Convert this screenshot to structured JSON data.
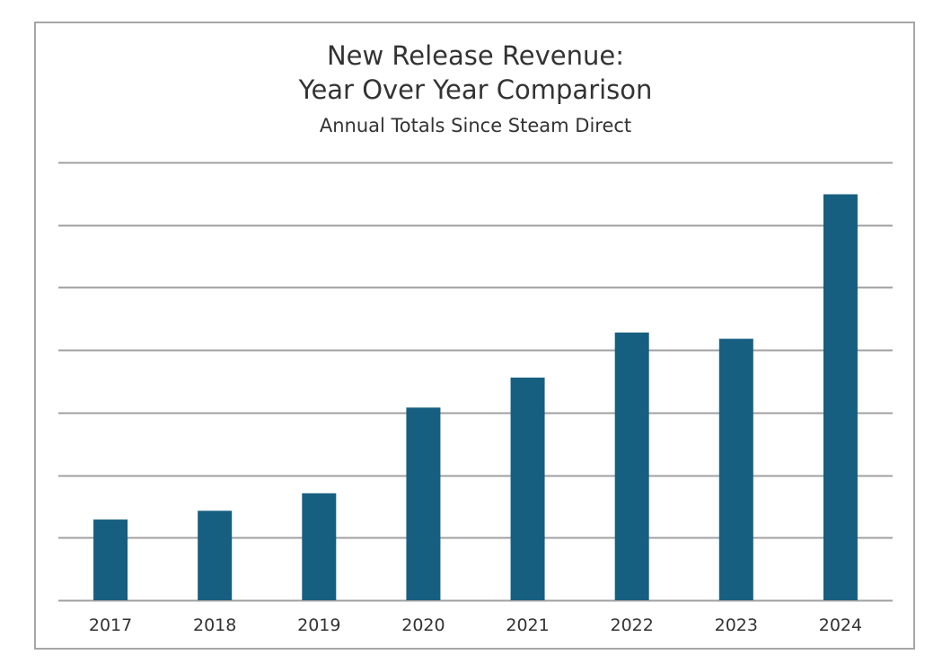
{
  "chart_data": {
    "type": "bar",
    "title": [
      "New Release Revenue:",
      "Year Over Year Comparison"
    ],
    "subtitle": "Annual Totals Since Steam Direct",
    "xlabel": "",
    "ylabel": "",
    "categories": [
      "2017",
      "2018",
      "2019",
      "2020",
      "2021",
      "2022",
      "2023",
      "2024"
    ],
    "values": [
      1.29,
      1.43,
      1.71,
      3.08,
      3.56,
      4.28,
      4.18,
      6.49
    ],
    "ylim": [
      0,
      7
    ],
    "y_tick_labels_shown": false,
    "grid": true,
    "bar_color": "#175f80",
    "grid_color": "#a0a0a0"
  }
}
